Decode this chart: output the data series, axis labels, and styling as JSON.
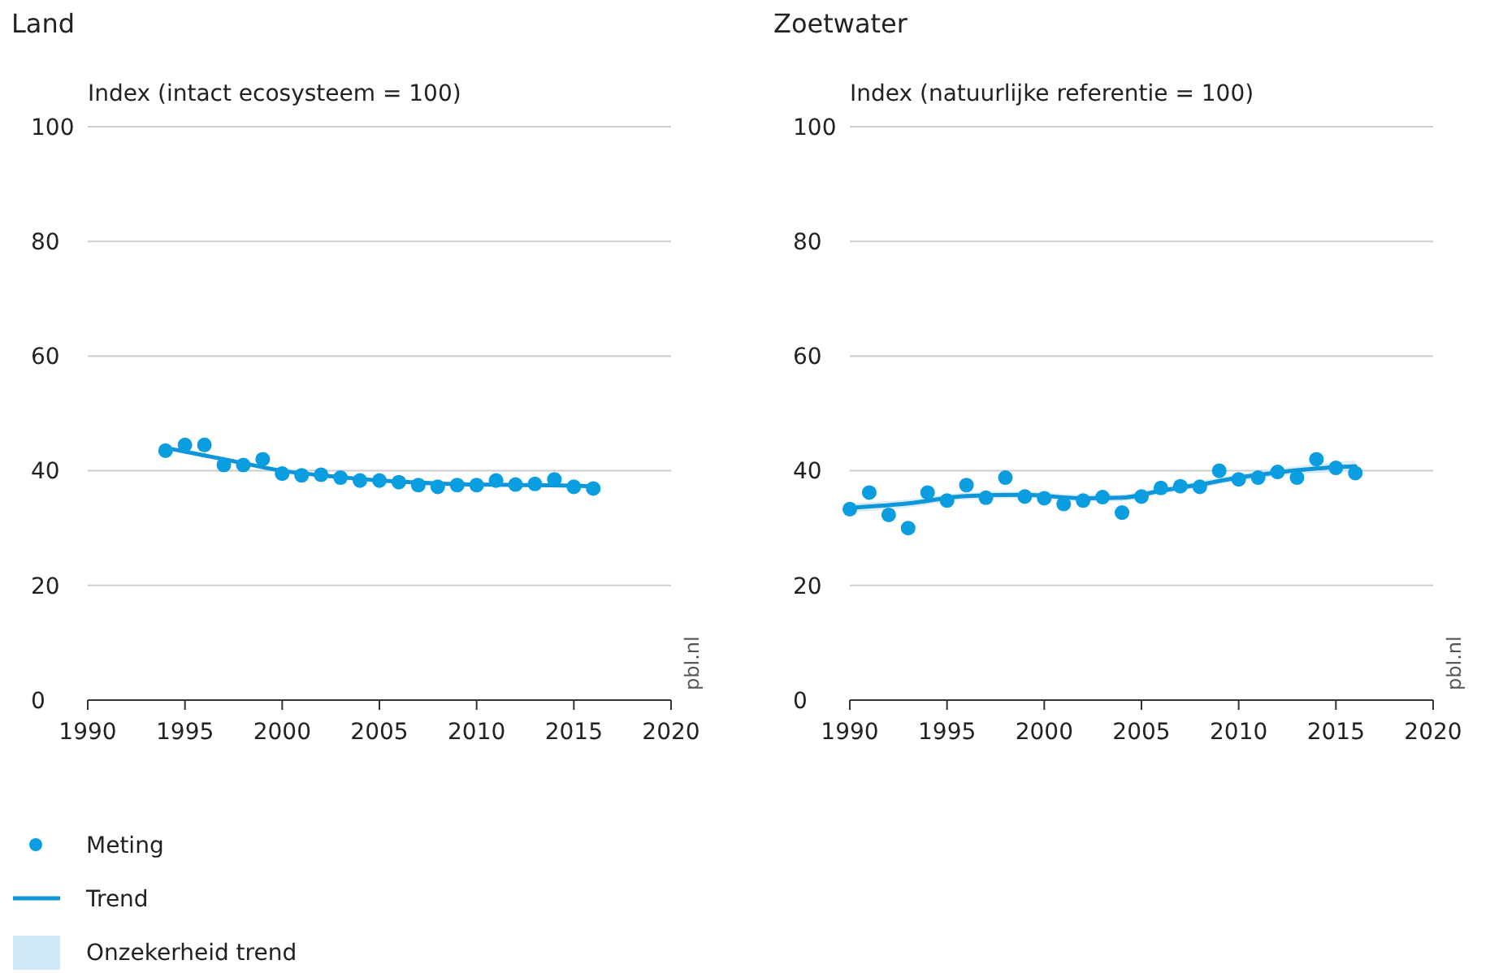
{
  "chart_data": [
    {
      "type": "scatter",
      "title": "Land",
      "ylabel": "Index (intact ecosysteem = 100)",
      "xlim": [
        1990,
        2020
      ],
      "xticks": [
        1990,
        1995,
        2000,
        2005,
        2010,
        2015,
        2020
      ],
      "ylim": [
        0,
        100
      ],
      "yticks": [
        0,
        20,
        40,
        60,
        80,
        100
      ],
      "grid": "y",
      "legend": "bottom left",
      "annotations": [
        "pbl.nl",
        "Onzekerheid trend"
      ],
      "series": [
        {
          "name": "Meting",
          "marker": "circle",
          "color": "#0a9de0",
          "x": [
            1994,
            1995,
            1996,
            1997,
            1998,
            1999,
            2000,
            2001,
            2002,
            2003,
            2004,
            2005,
            2006,
            2007,
            2008,
            2009,
            2010,
            2011,
            2012,
            2013,
            2014,
            2015,
            2016
          ],
          "values": [
            43.5,
            44.5,
            44.5,
            41,
            41,
            42,
            39.5,
            39.2,
            39.3,
            38.8,
            38.3,
            38.3,
            38,
            37.5,
            37.2,
            37.5,
            37.5,
            38.3,
            37.6,
            37.7,
            38.5,
            37.2,
            36.9
          ]
        },
        {
          "name": "Trend",
          "type": "line",
          "color": "#0f95d8",
          "x": [
            1994,
            1997,
            2000,
            2003,
            2005,
            2008,
            2010,
            2013,
            2016
          ],
          "values": [
            44,
            42,
            40,
            38.9,
            38.3,
            37.8,
            37.6,
            37.5,
            37.3
          ]
        }
      ]
    },
    {
      "type": "scatter",
      "title": "Zoetwater",
      "ylabel": "Index (natuurlijke referentie = 100)",
      "xlim": [
        1990,
        2020
      ],
      "xticks": [
        1990,
        1995,
        2000,
        2005,
        2010,
        2015,
        2020
      ],
      "ylim": [
        0,
        100
      ],
      "yticks": [
        0,
        20,
        40,
        60,
        80,
        100
      ],
      "grid": "y",
      "annotations": [
        "pbl.nl"
      ],
      "series": [
        {
          "marker": "circle",
          "color": "#0a9de0",
          "x": [
            1990,
            1991,
            1992,
            1993,
            1994,
            1995,
            1996,
            1997,
            1998,
            1999,
            2000,
            2001,
            2002,
            2003,
            2004,
            2005,
            2006,
            2007,
            2008,
            2009,
            2010,
            2011,
            2012,
            2013,
            2014,
            2015,
            2016
          ],
          "values": [
            33.3,
            36.2,
            32.3,
            30,
            36.2,
            34.8,
            37.5,
            35.3,
            38.8,
            35.5,
            35.2,
            34.2,
            34.8,
            35.4,
            32.7,
            35.5,
            37,
            37.3,
            37.2,
            40,
            38.5,
            38.8,
            39.8,
            38.8,
            42,
            40.5,
            39.6
          ]
        },
        {
          "type": "line",
          "color": "#0f95d8",
          "x": [
            1990,
            1993,
            1996,
            1999,
            2002,
            2004,
            2006,
            2008,
            2010,
            2012,
            2014,
            2016
          ],
          "values": [
            33.5,
            34.3,
            35.6,
            35.8,
            35.2,
            35.3,
            36.5,
            37.6,
            38.8,
            39.7,
            40.4,
            40.8
          ],
          "lower": [
            32.7,
            33.6,
            35,
            35.2,
            34.6,
            34.7,
            35.9,
            37,
            38.2,
            39,
            39.6,
            39.8
          ],
          "upper": [
            34.3,
            35,
            36.2,
            36.4,
            35.8,
            35.9,
            37.1,
            38.2,
            39.4,
            40.4,
            41.2,
            41.8
          ]
        }
      ]
    }
  ]
}
